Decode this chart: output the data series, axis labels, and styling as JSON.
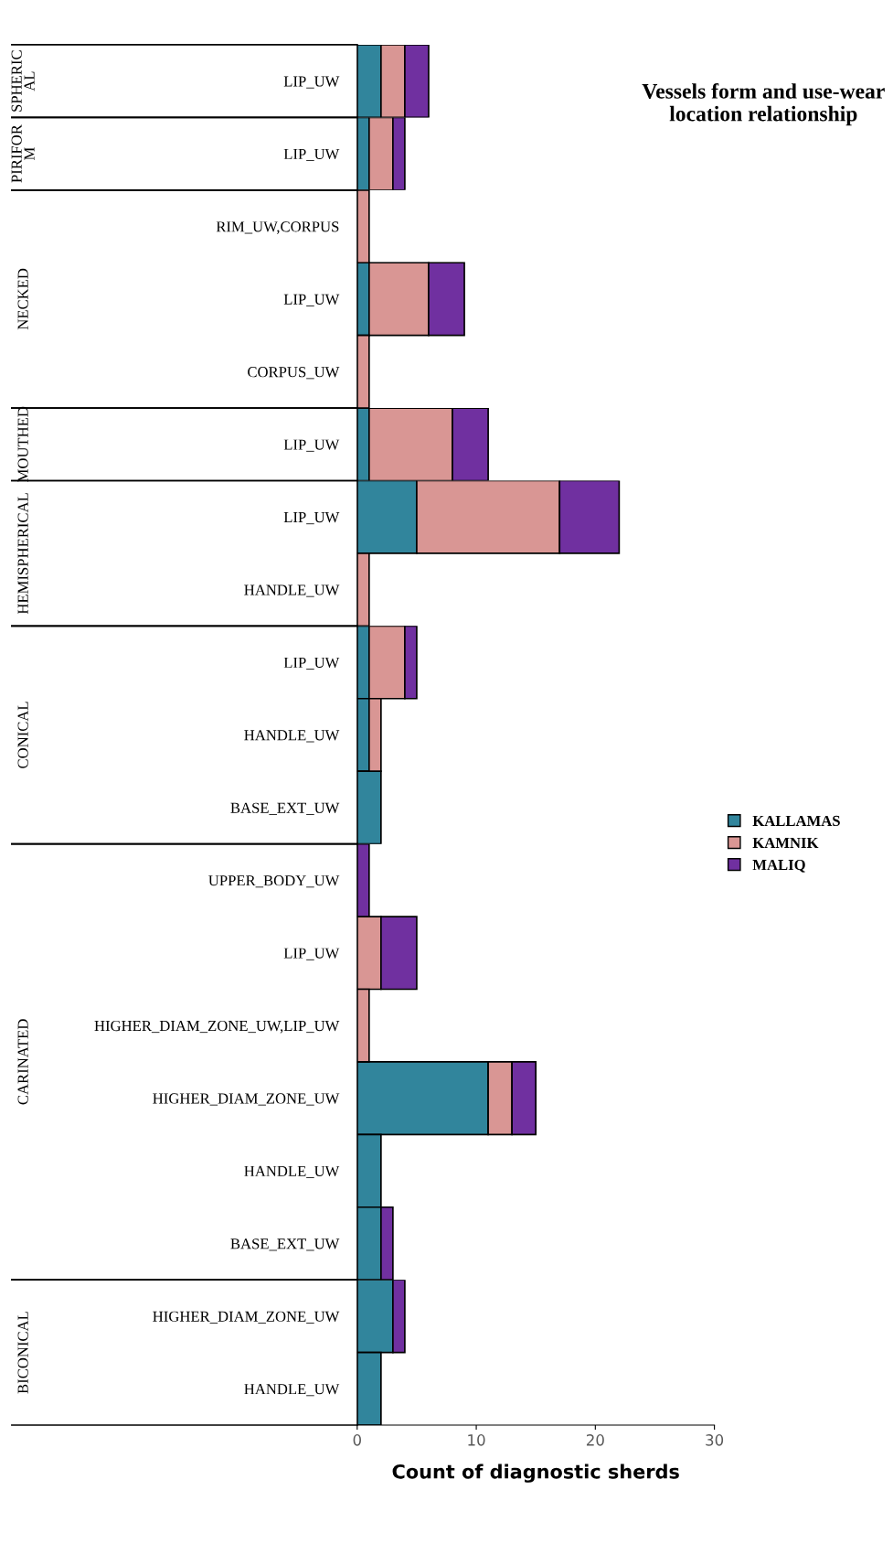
{
  "chart_data": [
    {
      "type": "bar",
      "orientation": "horizontal",
      "stacked": true,
      "title": "Vessels form and use-wear location relationship",
      "ylabel": "SPHERICAL",
      "categories": [
        "LIP_UW"
      ],
      "series": [
        {
          "color": "#31859c",
          "values": [
            2
          ]
        },
        {
          "color": "#d99694",
          "values": [
            2
          ]
        },
        {
          "color": "#7030a0",
          "values": [
            2
          ]
        }
      ],
      "xlim": [
        0,
        30
      ],
      "xticks": [
        0,
        10,
        20,
        30
      ],
      "tick_labels": "y"
    },
    {
      "type": "bar",
      "orientation": "horizontal",
      "stacked": true,
      "ylabel": "PIRIFORM",
      "categories": [
        "LIP_UW"
      ],
      "series": [
        {
          "color": "#31859c",
          "values": [
            1
          ]
        },
        {
          "color": "#d99694",
          "values": [
            2
          ]
        },
        {
          "color": "#7030a0",
          "values": [
            1
          ]
        }
      ],
      "xlim": [
        0,
        30
      ],
      "xticks": [
        0,
        10,
        20,
        30
      ],
      "tick_labels": "y"
    },
    {
      "type": "bar",
      "orientation": "horizontal",
      "stacked": true,
      "ylabel": "NECKED",
      "categories": [
        "RIM_UW,CORPUS",
        "LIP_UW",
        "CORPUS_UW"
      ],
      "series": [
        {
          "color": "#31859c",
          "values": [
            null,
            1,
            null
          ]
        },
        {
          "color": "#d99694",
          "values": [
            1,
            5,
            1
          ]
        },
        {
          "color": "#7030a0",
          "values": [
            null,
            3,
            null
          ]
        }
      ],
      "xlim": [
        0,
        30
      ],
      "xticks": [
        0,
        10,
        20,
        30
      ],
      "tick_labels": "y"
    },
    {
      "type": "bar",
      "orientation": "horizontal",
      "stacked": true,
      "ylabel": "MOUTHED",
      "categories": [
        "LIP_UW"
      ],
      "series": [
        {
          "color": "#31859c",
          "values": [
            1
          ]
        },
        {
          "color": "#d99694",
          "values": [
            7
          ]
        },
        {
          "color": "#7030a0",
          "values": [
            3
          ]
        }
      ],
      "xlim": [
        0,
        30
      ],
      "xticks": [
        0,
        10,
        20,
        30
      ],
      "tick_labels": "y"
    },
    {
      "type": "bar",
      "orientation": "horizontal",
      "stacked": true,
      "ylabel": "HEMISPHERICAL",
      "categories": [
        "LIP_UW",
        "HANDLE_UW"
      ],
      "series": [
        {
          "color": "#31859c",
          "values": [
            5,
            null
          ]
        },
        {
          "color": "#d99694",
          "values": [
            12,
            1
          ]
        },
        {
          "color": "#7030a0",
          "values": [
            5,
            null
          ]
        }
      ],
      "xlim": [
        0,
        30
      ],
      "xticks": [
        0,
        10,
        20,
        30
      ],
      "tick_labels": "y"
    },
    {
      "type": "bar",
      "orientation": "horizontal",
      "stacked": true,
      "ylabel": "CONICAL",
      "categories": [
        "LIP_UW",
        "HANDLE_UW",
        "BASE_EXT_UW"
      ],
      "series": [
        {
          "name": "KALLAMAS",
          "color": "#31859c",
          "values": [
            1,
            1,
            2
          ]
        },
        {
          "name": "KAMNIK",
          "color": "#d99694",
          "values": [
            3,
            1,
            null
          ]
        },
        {
          "name": "MALIQ",
          "color": "#7030a0",
          "values": [
            1,
            null,
            null
          ]
        }
      ],
      "xlim": [
        0,
        30
      ],
      "xticks": [
        0,
        10,
        20,
        30
      ],
      "tick_labels": "y",
      "legend": "right"
    },
    {
      "type": "bar",
      "orientation": "horizontal",
      "stacked": true,
      "ylabel": "CARINATED",
      "categories": [
        "UPPER_BODY_UW",
        "LIP_UW",
        "HIGHER_DIAM_ZONE_UW,LIP_UW",
        "HIGHER_DIAM_ZONE_UW",
        "HANDLE_UW",
        "BASE_EXT_UW"
      ],
      "series": [
        {
          "color": "#31859c",
          "values": [
            null,
            null,
            null,
            11,
            2,
            2
          ]
        },
        {
          "color": "#d99694",
          "values": [
            null,
            2,
            1,
            2,
            null,
            null
          ]
        },
        {
          "color": "#7030a0",
          "values": [
            1,
            3,
            null,
            2,
            null,
            1
          ]
        }
      ],
      "xlim": [
        0,
        30
      ],
      "xticks": [
        0,
        10,
        20,
        30
      ],
      "tick_labels": "y"
    },
    {
      "type": "bar",
      "orientation": "horizontal",
      "stacked": true,
      "ylabel": "BICONICAL",
      "xlabel": "Count of diagnostic sherds",
      "categories": [
        "HIGHER_DIAM_ZONE_UW",
        "HANDLE_UW"
      ],
      "series": [
        {
          "color": "#31859c",
          "values": [
            3,
            2
          ]
        },
        {
          "color": "#7030a0",
          "values": [
            1,
            null
          ]
        }
      ],
      "xlim": [
        0,
        30
      ],
      "xticks": [
        0,
        10,
        20,
        30
      ]
    }
  ]
}
